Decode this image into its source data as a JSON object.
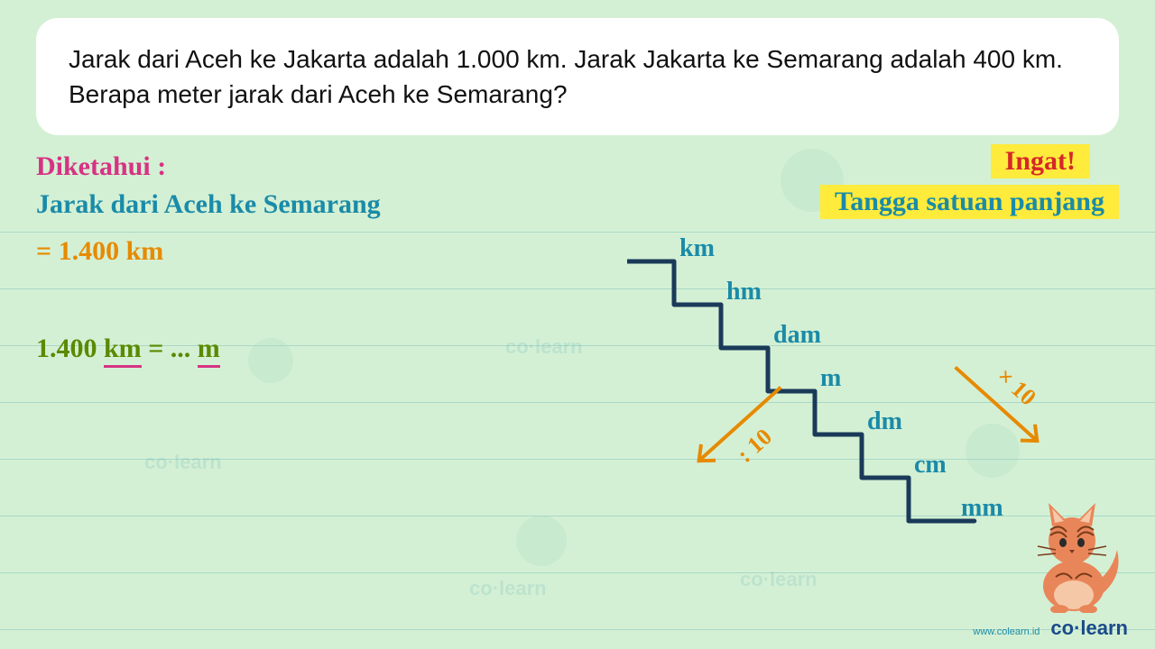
{
  "question": "Jarak dari Aceh ke Jakarta adalah 1.000 km. Jarak Jakarta ke Semarang adalah 400 km. Berapa meter jarak dari Aceh ke Semarang?",
  "diketahui_label": "Diketahui :",
  "jarak_line": "Jarak dari Aceh ke Semarang",
  "value_line": "= 1.400 km",
  "convert": {
    "prefix": "1.400 ",
    "unit1": "km",
    "mid": "  =  ... ",
    "unit2": "m"
  },
  "ingat": "Ingat!",
  "tangga_title": "Tangga satuan panjang",
  "stairs": {
    "units": [
      "km",
      "hm",
      "dam",
      "m",
      "dm",
      "cm",
      "mm"
    ],
    "step_w": 52,
    "step_h": 48,
    "line_color": "#1a3a5a",
    "line_width": 5,
    "label_color": "#1a8ba8",
    "label_fontsize": 28
  },
  "arrows": {
    "up_label": ": 10",
    "down_label": "× 10",
    "color": "#e68a00"
  },
  "footer": {
    "url": "www.colearn.id",
    "logo": "co·learn"
  },
  "colors": {
    "bg": "#d4f0d4",
    "card_bg": "#ffffff",
    "pink": "#d63384",
    "teal": "#1a8ba8",
    "orange": "#e68a00",
    "olive": "#5a8a00",
    "yellow_hl": "#ffeb3b",
    "red": "#d62828",
    "rule": "#a8d8c8"
  },
  "watermarks": [
    "co·learn",
    "co·learn",
    "co·learn",
    "co·learn"
  ]
}
